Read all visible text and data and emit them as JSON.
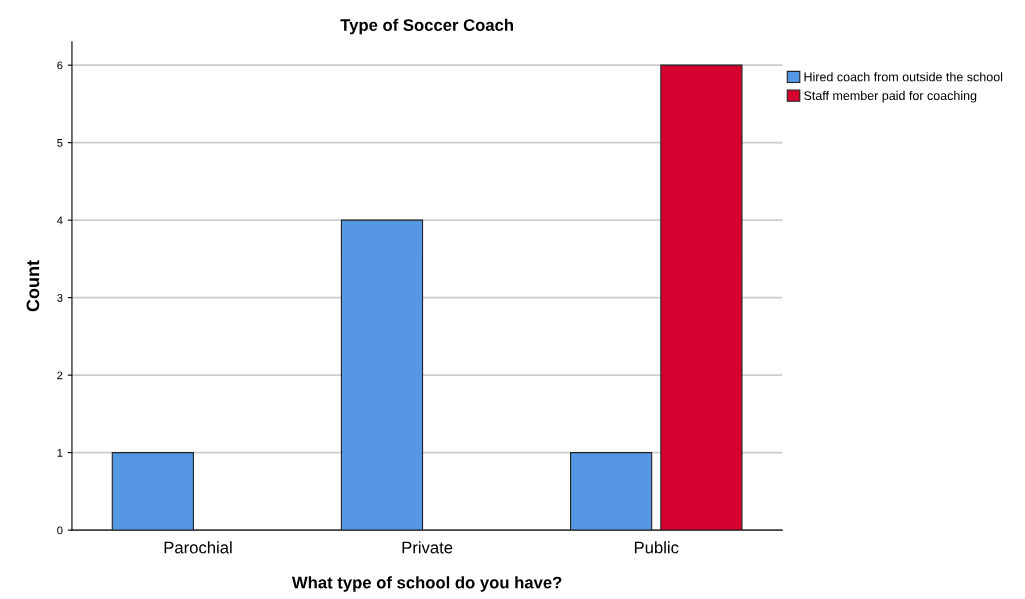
{
  "chart_data": {
    "type": "bar",
    "title": "Type of Soccer Coach",
    "xlabel": "What type of school do you have?",
    "ylabel": "Count",
    "categories": [
      "Parochial",
      "Private",
      "Public"
    ],
    "series": [
      {
        "name": "Hired coach from outside the school",
        "color": "#5597e3",
        "values": [
          1,
          4,
          1
        ]
      },
      {
        "name": "Staff member paid for coaching",
        "color": "#d6002f",
        "values": [
          null,
          null,
          6
        ]
      }
    ],
    "ylim": [
      0,
      6.3
    ],
    "yticks": [
      0,
      1,
      2,
      3,
      4,
      5,
      6
    ],
    "grid": "y",
    "legend": "top right"
  }
}
